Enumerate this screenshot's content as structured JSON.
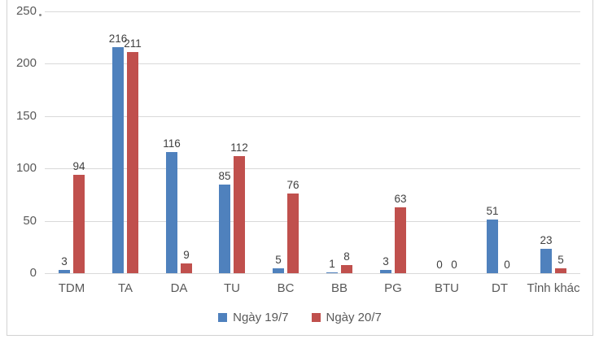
{
  "colors": {
    "series1": "#4F81BD",
    "series2": "#C0504D",
    "grid": "#D9D9D9",
    "frame": "#D2D2D2",
    "axis_text": "#595959",
    "value_text": "#404040"
  },
  "chart_data": {
    "type": "bar",
    "title": "",
    "xlabel": "",
    "ylabel": "",
    "categories": [
      "TDM",
      "TA",
      "DA",
      "TU",
      "BC",
      "BB",
      "PG",
      "BTU",
      "DT",
      "Tỉnh khác"
    ],
    "series": [
      {
        "name": "Ngày 19/7",
        "color": "#4F81BD",
        "values": [
          3,
          216,
          116,
          85,
          5,
          1,
          3,
          0,
          51,
          23
        ]
      },
      {
        "name": "Ngày 20/7",
        "color": "#C0504D",
        "values": [
          94,
          211,
          9,
          112,
          76,
          8,
          63,
          0,
          0,
          5
        ]
      }
    ],
    "ylim": [
      0,
      250
    ],
    "yticks": [
      0,
      50,
      100,
      150,
      200,
      250
    ],
    "grid": true,
    "legend_position": "bottom",
    "data_labels": true
  }
}
